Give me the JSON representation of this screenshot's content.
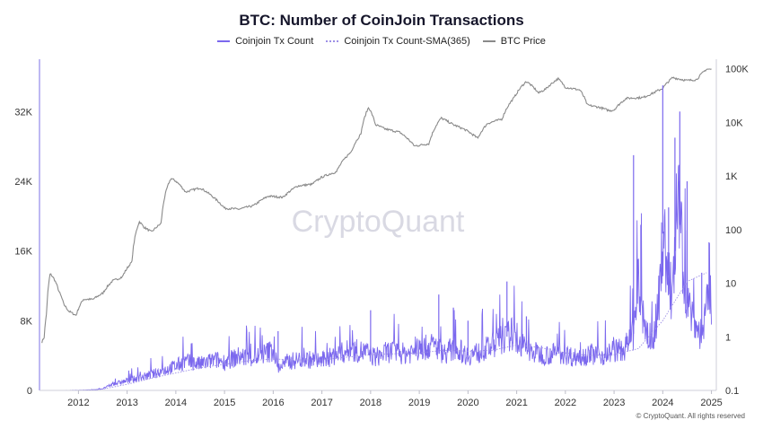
{
  "chart_data": {
    "type": "line",
    "title": "BTC: Number of CoinJoin Transactions",
    "watermark": "CryptoQuant",
    "copyright": "© CryptoQuant. All rights reserved",
    "legend_position": "top-center",
    "grid": false,
    "x_ticks": [
      "2012",
      "2013",
      "2014",
      "2015",
      "2016",
      "2017",
      "2018",
      "2019",
      "2020",
      "2021",
      "2022",
      "2023",
      "2024",
      "2025"
    ],
    "x_range": [
      2011.2,
      2025.1
    ],
    "left_axis": {
      "ticks": [
        0,
        8000,
        16000,
        24000,
        32000
      ],
      "tick_labels": [
        "0",
        "8K",
        "16K",
        "24K",
        "32K"
      ],
      "range": [
        0,
        38000
      ]
    },
    "right_axis": {
      "scale": "log",
      "ticks": [
        0.1,
        1,
        10,
        100,
        1000,
        10000,
        100000
      ],
      "tick_labels": [
        "0.1",
        "1",
        "10",
        "100",
        "1K",
        "10K",
        "100K"
      ],
      "range": [
        0.1,
        150000
      ]
    },
    "colors": {
      "tx_count": "#7b68ee",
      "sma": "#9d8fe6",
      "btc_price": "#8a8a8a",
      "axis_left": "#a9a0ef"
    },
    "series": [
      {
        "name": "Coinjoin Tx Count",
        "axis": "left",
        "style": "spiky",
        "points": [
          [
            2011.2,
            0
          ],
          [
            2011.5,
            5
          ],
          [
            2012.0,
            20
          ],
          [
            2012.3,
            60
          ],
          [
            2012.5,
            200
          ],
          [
            2012.7,
            700
          ],
          [
            2013.0,
            1100
          ],
          [
            2013.3,
            1500
          ],
          [
            2013.5,
            1800
          ],
          [
            2013.7,
            2200
          ],
          [
            2014.0,
            2800
          ],
          [
            2014.2,
            3300
          ],
          [
            2014.5,
            3000
          ],
          [
            2014.8,
            3500
          ],
          [
            2015.0,
            3300
          ],
          [
            2015.3,
            3900
          ],
          [
            2015.6,
            3700
          ],
          [
            2015.9,
            4400
          ],
          [
            2016.0,
            4700
          ],
          [
            2016.1,
            2600
          ],
          [
            2016.3,
            3300
          ],
          [
            2016.6,
            3600
          ],
          [
            2017.0,
            3400
          ],
          [
            2017.3,
            4100
          ],
          [
            2017.6,
            4600
          ],
          [
            2017.9,
            4400
          ],
          [
            2018.1,
            3800
          ],
          [
            2018.4,
            4500
          ],
          [
            2018.7,
            4200
          ],
          [
            2019.0,
            4700
          ],
          [
            2019.3,
            5200
          ],
          [
            2019.5,
            4300
          ],
          [
            2019.8,
            4700
          ],
          [
            2020.0,
            4000
          ],
          [
            2020.3,
            4500
          ],
          [
            2020.6,
            5500
          ],
          [
            2020.9,
            6500
          ],
          [
            2021.0,
            5600
          ],
          [
            2021.3,
            4400
          ],
          [
            2021.6,
            4100
          ],
          [
            2021.9,
            4300
          ],
          [
            2022.2,
            3800
          ],
          [
            2022.5,
            4200
          ],
          [
            2022.8,
            4000
          ],
          [
            2023.0,
            4600
          ],
          [
            2023.2,
            4600
          ],
          [
            2023.4,
            6500
          ],
          [
            2023.5,
            12000
          ],
          [
            2023.6,
            8500
          ],
          [
            2023.7,
            6000
          ],
          [
            2023.8,
            6000
          ],
          [
            2023.9,
            9000
          ],
          [
            2024.0,
            18000
          ],
          [
            2024.1,
            14000
          ],
          [
            2024.2,
            10000
          ],
          [
            2024.3,
            22000
          ],
          [
            2024.4,
            16000
          ],
          [
            2024.5,
            10000
          ],
          [
            2024.6,
            9000
          ],
          [
            2024.7,
            7000
          ],
          [
            2024.8,
            6500
          ],
          [
            2024.9,
            9000
          ],
          [
            2024.95,
            12000
          ],
          [
            2025.0,
            9500
          ]
        ],
        "spikes": [
          [
            2016.1,
            6800
          ],
          [
            2018.0,
            9200
          ],
          [
            2019.4,
            11000
          ],
          [
            2019.7,
            9500
          ],
          [
            2020.0,
            8000
          ],
          [
            2020.8,
            12500
          ],
          [
            2021.2,
            8500
          ],
          [
            2023.4,
            27000
          ],
          [
            2023.55,
            19000
          ],
          [
            2024.0,
            35000
          ],
          [
            2024.12,
            21000
          ],
          [
            2024.25,
            29000
          ],
          [
            2024.35,
            32000
          ],
          [
            2024.5,
            24000
          ],
          [
            2024.8,
            13500
          ],
          [
            2024.95,
            17000
          ]
        ]
      },
      {
        "name": "Coinjoin Tx Count-SMA(365)",
        "axis": "left",
        "style": "dotted",
        "points": [
          [
            2011.2,
            0
          ],
          [
            2012.0,
            10
          ],
          [
            2012.5,
            150
          ],
          [
            2013.0,
            700
          ],
          [
            2013.5,
            1400
          ],
          [
            2014.0,
            2000
          ],
          [
            2014.5,
            2600
          ],
          [
            2015.0,
            3000
          ],
          [
            2015.5,
            3400
          ],
          [
            2016.0,
            3600
          ],
          [
            2016.5,
            3500
          ],
          [
            2017.0,
            3500
          ],
          [
            2017.5,
            3800
          ],
          [
            2018.0,
            4100
          ],
          [
            2018.5,
            4200
          ],
          [
            2019.0,
            4300
          ],
          [
            2019.5,
            4600
          ],
          [
            2020.0,
            4500
          ],
          [
            2020.5,
            4600
          ],
          [
            2021.0,
            5200
          ],
          [
            2021.5,
            4900
          ],
          [
            2022.0,
            4300
          ],
          [
            2022.5,
            4000
          ],
          [
            2023.0,
            4100
          ],
          [
            2023.5,
            4800
          ],
          [
            2024.0,
            8000
          ],
          [
            2024.5,
            12500
          ],
          [
            2024.9,
            13500
          ]
        ]
      },
      {
        "name": "BTC Price",
        "axis": "right",
        "style": "line",
        "points": [
          [
            2011.25,
            0.8
          ],
          [
            2011.3,
            1.0
          ],
          [
            2011.35,
            3
          ],
          [
            2011.42,
            15
          ],
          [
            2011.5,
            12
          ],
          [
            2011.6,
            7
          ],
          [
            2011.7,
            4
          ],
          [
            2011.8,
            3
          ],
          [
            2011.95,
            2.5
          ],
          [
            2012.1,
            5
          ],
          [
            2012.3,
            5
          ],
          [
            2012.5,
            6.5
          ],
          [
            2012.7,
            11
          ],
          [
            2012.9,
            13
          ],
          [
            2013.1,
            25
          ],
          [
            2013.25,
            140
          ],
          [
            2013.35,
            110
          ],
          [
            2013.5,
            90
          ],
          [
            2013.7,
            130
          ],
          [
            2013.9,
            900
          ],
          [
            2014.0,
            800
          ],
          [
            2014.2,
            500
          ],
          [
            2014.5,
            600
          ],
          [
            2014.8,
            380
          ],
          [
            2015.0,
            250
          ],
          [
            2015.3,
            240
          ],
          [
            2015.6,
            280
          ],
          [
            2015.9,
            420
          ],
          [
            2016.2,
            400
          ],
          [
            2016.5,
            650
          ],
          [
            2016.8,
            700
          ],
          [
            2017.0,
            950
          ],
          [
            2017.3,
            1200
          ],
          [
            2017.6,
            2800
          ],
          [
            2017.8,
            6000
          ],
          [
            2017.96,
            19000
          ],
          [
            2018.1,
            9000
          ],
          [
            2018.3,
            7500
          ],
          [
            2018.6,
            6500
          ],
          [
            2018.9,
            3600
          ],
          [
            2019.2,
            4000
          ],
          [
            2019.45,
            12000
          ],
          [
            2019.7,
            9000
          ],
          [
            2019.95,
            7200
          ],
          [
            2020.2,
            5000
          ],
          [
            2020.4,
            9500
          ],
          [
            2020.7,
            11500
          ],
          [
            2020.95,
            29000
          ],
          [
            2021.2,
            58000
          ],
          [
            2021.45,
            35000
          ],
          [
            2021.6,
            42000
          ],
          [
            2021.85,
            65000
          ],
          [
            2022.0,
            45000
          ],
          [
            2022.3,
            40000
          ],
          [
            2022.45,
            21000
          ],
          [
            2022.7,
            19000
          ],
          [
            2022.9,
            16500
          ],
          [
            2023.0,
            17000
          ],
          [
            2023.25,
            28000
          ],
          [
            2023.6,
            29000
          ],
          [
            2023.8,
            35000
          ],
          [
            2024.0,
            43000
          ],
          [
            2024.2,
            68000
          ],
          [
            2024.5,
            60000
          ],
          [
            2024.7,
            63000
          ],
          [
            2024.9,
            98000
          ],
          [
            2025.0,
            97000
          ]
        ]
      }
    ]
  }
}
